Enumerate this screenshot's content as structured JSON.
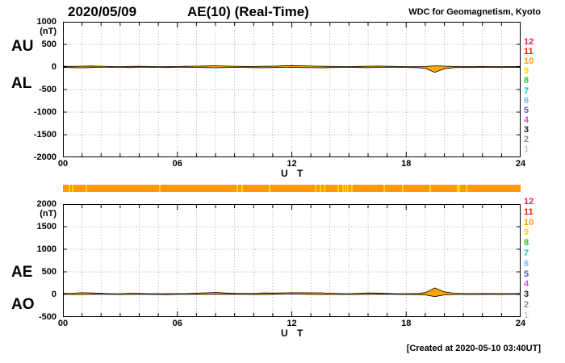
{
  "header": {
    "date": "2020/05/09",
    "title": "AE(10) (Real-Time)",
    "credit": "WDC for Geomagnetism, Kyoto"
  },
  "footer": {
    "created": "[Created at 2020-05-10 03:40UT]"
  },
  "axis": {
    "x_label": "U T",
    "x_ticks": [
      {
        "label": "00",
        "hour": 0
      },
      {
        "label": "06",
        "hour": 6
      },
      {
        "label": "12",
        "hour": 12
      },
      {
        "label": "18",
        "hour": 18
      },
      {
        "label": "24",
        "hour": 24
      }
    ]
  },
  "panels": [
    {
      "name": "top",
      "left_labels": [
        "AU",
        "AL"
      ],
      "unit": "(nT)"
    },
    {
      "name": "bottom",
      "left_labels": [
        "AE",
        "AO"
      ],
      "unit": "(nT)"
    }
  ],
  "legend": {
    "meaning": "number-of-stations",
    "items": [
      {
        "label": "12",
        "color": "#ff1a55"
      },
      {
        "label": "11",
        "color": "#ff2200"
      },
      {
        "label": "10",
        "color": "#ff9900"
      },
      {
        "label": "9",
        "color": "#ffd300"
      },
      {
        "label": "8",
        "color": "#2dbf2d"
      },
      {
        "label": "7",
        "color": "#00c8c8"
      },
      {
        "label": "6",
        "color": "#6fb7ff"
      },
      {
        "label": "5",
        "color": "#5555ee"
      },
      {
        "label": "4",
        "color": "#cc55cc"
      },
      {
        "label": "3",
        "color": "#222222"
      },
      {
        "label": "2",
        "color": "#8a8a8a"
      },
      {
        "label": "1",
        "color": "#c8c8c8"
      }
    ]
  },
  "status_bar": {
    "main_color": "#ff9900",
    "fleck_color": "#ffd500",
    "fleck_positions": [
      0.012,
      0.02,
      0.05,
      0.21,
      0.38,
      0.39,
      0.45,
      0.55,
      0.56,
      0.57,
      0.6,
      0.61,
      0.615,
      0.62,
      0.63,
      0.7,
      0.74,
      0.8,
      0.86,
      0.865,
      0.88
    ]
  },
  "chart_data": [
    {
      "type": "line",
      "title": "AU and AL indices, 2020/05/09 (quiet day, values near 0 nT)",
      "xlabel": "U T",
      "ylabel": "(nT)",
      "x_range": [
        0,
        24
      ],
      "x_step_hours": 0.5,
      "ylim": [
        -2000,
        1000
      ],
      "yticks": [
        1000,
        500,
        0,
        -500,
        -1000,
        -1500,
        -2000
      ],
      "grid": true,
      "band_color": "#ffa500",
      "line_color": "#000000",
      "series": [
        {
          "name": "AU",
          "values": [
            15,
            12,
            18,
            22,
            16,
            10,
            8,
            12,
            14,
            10,
            8,
            6,
            10,
            14,
            18,
            22,
            26,
            20,
            16,
            12,
            10,
            14,
            18,
            24,
            30,
            26,
            20,
            16,
            12,
            10,
            8,
            12,
            16,
            20,
            14,
            10,
            8,
            6,
            10,
            25,
            18,
            12,
            10,
            8,
            12,
            10,
            8,
            10,
            12
          ]
        },
        {
          "name": "AL",
          "values": [
            -10,
            -15,
            -20,
            -12,
            -8,
            -6,
            -10,
            -14,
            -8,
            -6,
            -10,
            -12,
            -8,
            -6,
            -10,
            -14,
            -18,
            -12,
            -8,
            -10,
            -14,
            -18,
            -12,
            -10,
            -8,
            -12,
            -16,
            -20,
            -14,
            -10,
            -8,
            -12,
            -16,
            -10,
            -8,
            -6,
            -10,
            -14,
            -30,
            -120,
            -40,
            -15,
            -10,
            -12,
            -8,
            -10,
            -12,
            -8,
            -10
          ]
        }
      ]
    },
    {
      "type": "line",
      "title": "AE and AO indices, 2020/05/09 (quiet day, small spike near 19.5 UT)",
      "xlabel": "U T",
      "ylabel": "(nT)",
      "x_range": [
        0,
        24
      ],
      "x_step_hours": 0.5,
      "ylim": [
        -500,
        2000
      ],
      "yticks": [
        2000,
        1500,
        1000,
        500,
        0,
        -500
      ],
      "grid": true,
      "band_color": "#ffa500",
      "line_color": "#000000",
      "series": [
        {
          "name": "AE",
          "values": [
            25,
            27,
            38,
            34,
            24,
            16,
            18,
            26,
            22,
            16,
            18,
            18,
            18,
            20,
            28,
            36,
            44,
            32,
            24,
            22,
            24,
            32,
            30,
            34,
            38,
            38,
            36,
            36,
            26,
            20,
            16,
            24,
            32,
            30,
            22,
            16,
            18,
            20,
            40,
            145,
            58,
            27,
            20,
            20,
            20,
            20,
            20,
            18,
            22
          ]
        },
        {
          "name": "AO",
          "values": [
            3,
            -2,
            -1,
            5,
            4,
            2,
            -1,
            -1,
            3,
            2,
            -1,
            -3,
            1,
            4,
            4,
            4,
            4,
            4,
            4,
            1,
            -2,
            -2,
            3,
            7,
            11,
            7,
            2,
            -2,
            -1,
            0,
            0,
            0,
            0,
            5,
            3,
            2,
            -1,
            -4,
            -10,
            -48,
            -11,
            -2,
            0,
            -2,
            2,
            0,
            -2,
            1,
            1
          ]
        }
      ]
    }
  ]
}
